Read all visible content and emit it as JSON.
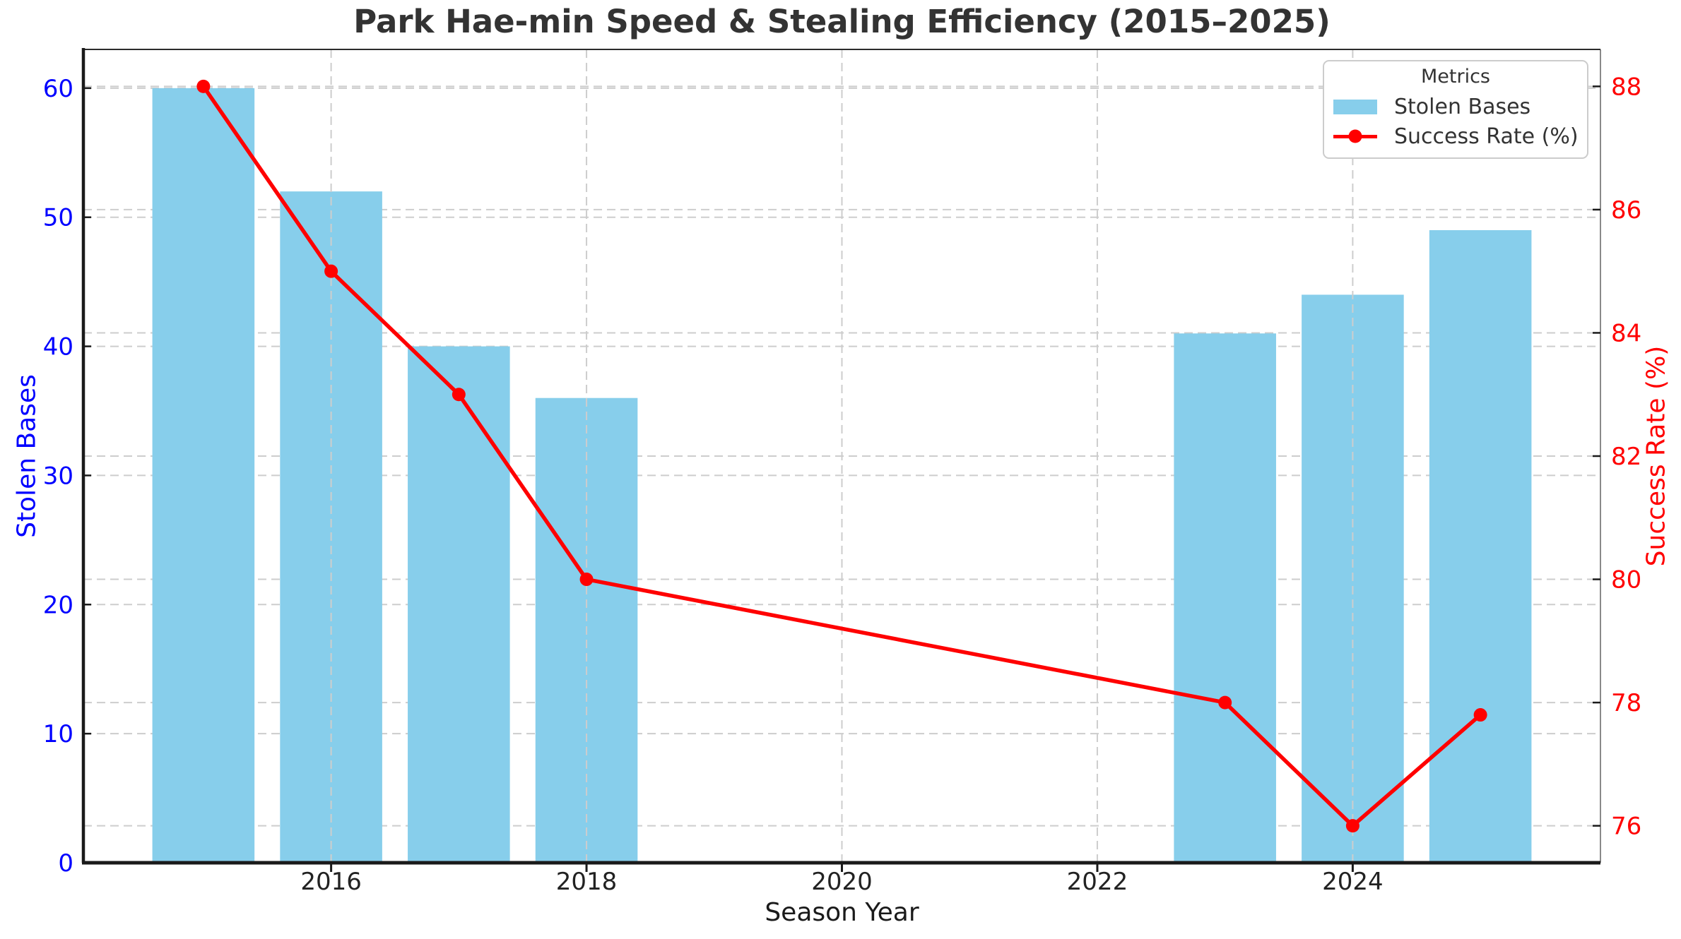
{
  "chart_data": {
    "type": "bar",
    "title": "Park Hae-min Speed & Stealing Efficiency (2015–2025)",
    "xlabel": "Season Year",
    "x": [
      2015,
      2016,
      2017,
      2018,
      2023,
      2024,
      2025
    ],
    "series": [
      {
        "name": "Stolen Bases",
        "type": "bar",
        "axis": "left",
        "color": "#87CEEB",
        "values": [
          60,
          52,
          40,
          36,
          41,
          44,
          49
        ]
      },
      {
        "name": "Success Rate (%)",
        "type": "line",
        "axis": "right",
        "color": "#FF0000",
        "values": [
          88,
          85,
          83,
          80,
          78,
          76,
          77.8
        ]
      }
    ],
    "left_axis": {
      "label": "Stolen Bases",
      "color": "#0000FF",
      "ticks": [
        0,
        10,
        20,
        30,
        40,
        50,
        60
      ],
      "lim": [
        0,
        63
      ]
    },
    "right_axis": {
      "label": "Success Rate (%)",
      "color": "#FF0000",
      "ticks": [
        76,
        78,
        80,
        82,
        84,
        86,
        88
      ],
      "lim": [
        75.4,
        88.6
      ]
    },
    "x_axis": {
      "ticks": [
        2016,
        2018,
        2020,
        2022,
        2024
      ],
      "lim": [
        2014.06,
        2025.94
      ]
    },
    "legend": {
      "title": "Metrics"
    },
    "grid": true,
    "bar_width_years": 0.8,
    "grid_color": "#cdcdcd",
    "spine_color": "#1a1a1a",
    "tick_label_color_x": "#222222"
  }
}
